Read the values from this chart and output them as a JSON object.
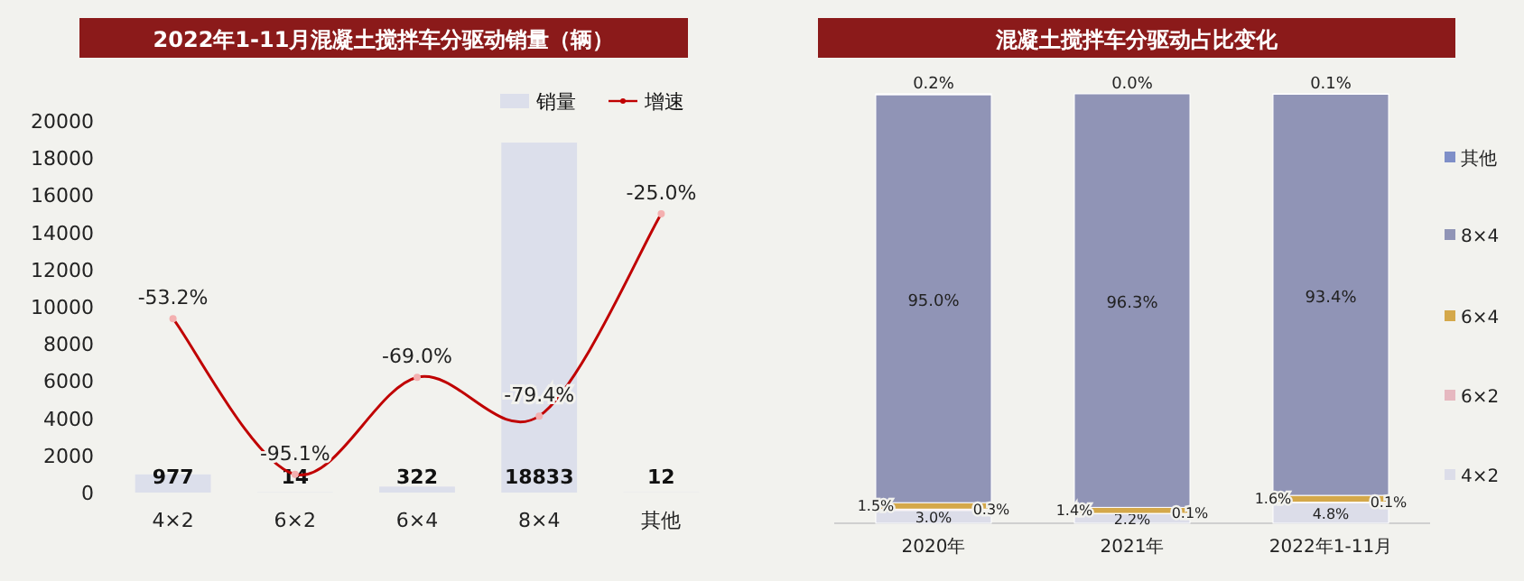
{
  "chart_data": [
    {
      "type": "bar",
      "title": "2022年1-11月混凝土搅拌车分驱动销量（辆）",
      "categories": [
        "4×2",
        "6×2",
        "6×4",
        "8×4",
        "其他"
      ],
      "ylim": [
        0,
        20000
      ],
      "yticks": [
        0,
        2000,
        4000,
        6000,
        8000,
        10000,
        12000,
        14000,
        16000,
        18000,
        20000
      ],
      "y2lim": [
        -100,
        0
      ],
      "legend": "top right",
      "grid": false,
      "series": [
        {
          "name": "销量",
          "type": "bar",
          "color": "#dcdfeb",
          "values": [
            977,
            14,
            322,
            18833,
            12
          ],
          "value_labels": [
            "977",
            "14",
            "322",
            "18833",
            "12"
          ]
        },
        {
          "name": "增速",
          "type": "line",
          "axis": "y2",
          "color": "#c00000",
          "marker": "circle",
          "values": [
            -53.2,
            -95.1,
            -69.0,
            -79.4,
            -25.0
          ],
          "value_labels": [
            "-53.2%",
            "-95.1%",
            "-69.0%",
            "-79.4%",
            "-25.0%"
          ]
        }
      ]
    },
    {
      "type": "bar",
      "title": "混凝土搅拌车分驱动占比变化",
      "categories": [
        "2020年",
        "2021年",
        "2022年1-11月"
      ],
      "stacked": true,
      "ylim": [
        0,
        100
      ],
      "legend": "right",
      "series": [
        {
          "name": "4×2",
          "color": "#dcdde9",
          "values": [
            3.0,
            2.2,
            4.8
          ],
          "value_labels": [
            "3.0%",
            "2.2%",
            "4.8%"
          ]
        },
        {
          "name": "6×2",
          "color": "#e6b8c0",
          "values": [
            0.3,
            0.1,
            0.1
          ],
          "value_labels": [
            "0.3%",
            "0.1%",
            "0.1%"
          ]
        },
        {
          "name": "6×4",
          "color": "#d4a84a",
          "values": [
            1.5,
            1.4,
            1.6
          ],
          "value_labels": [
            "1.5%",
            "1.4%",
            "1.6%"
          ]
        },
        {
          "name": "8×4",
          "color": "#9094b6",
          "values": [
            95.0,
            96.3,
            93.4
          ],
          "value_labels": [
            "95.0%",
            "96.3%",
            "93.4%"
          ]
        },
        {
          "name": "其他",
          "color": "#7f8fc8",
          "values": [
            0.2,
            0.0,
            0.1
          ],
          "value_labels": [
            "0.2%",
            "0.0%",
            "0.1%"
          ]
        }
      ]
    }
  ]
}
